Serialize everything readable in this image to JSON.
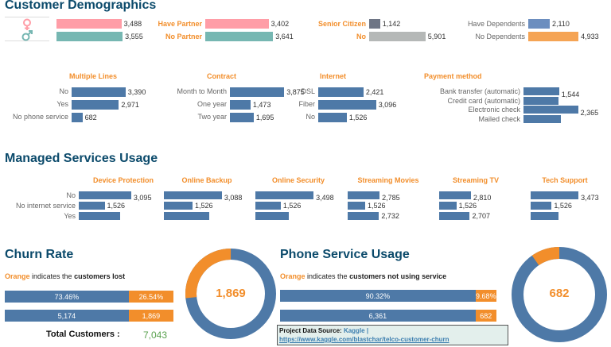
{
  "demographics": {
    "title": "Customer Demographics",
    "gender": {
      "icons": [
        "female-icon",
        "male-icon"
      ],
      "values": [
        3488,
        3555
      ],
      "labels": [
        "3,488",
        "3,555"
      ],
      "colors": [
        "#ff9da7",
        "#76b7b2"
      ]
    },
    "partner": {
      "categories": [
        "Have Partner",
        "No Partner"
      ],
      "values": [
        3402,
        3641
      ],
      "labels": [
        "3,402",
        "3,641"
      ],
      "colors": [
        "#ff9da7",
        "#76b7b2"
      ]
    },
    "senior": {
      "categories": [
        "Senior Citizen",
        "No"
      ],
      "values": [
        1142,
        5901
      ],
      "labels": [
        "1,142",
        "5,901"
      ],
      "colors": [
        "#6e7585",
        "#b5b8b7"
      ]
    },
    "dependents": {
      "categories": [
        "Have Dependents",
        "No Dependents"
      ],
      "values": [
        2110,
        4933
      ],
      "labels": [
        "2,110",
        "4,933"
      ],
      "colors": [
        "#6c8ebf",
        "#f5a454"
      ]
    }
  },
  "services": {
    "multiple_lines": {
      "title": "Multiple Lines",
      "categories": [
        "No",
        "Yes",
        "No phone service"
      ],
      "values": [
        3390,
        2971,
        682
      ],
      "labels": [
        "3,390",
        "2,971",
        "682"
      ]
    },
    "contract": {
      "title": "Contract",
      "categories": [
        "Month to Month",
        "One year",
        "Two year"
      ],
      "values": [
        3875,
        1473,
        1695
      ],
      "labels": [
        "3,875",
        "1,473",
        "1,695"
      ]
    },
    "internet": {
      "title": "Internet",
      "categories": [
        "DSL",
        "Fiber",
        "No"
      ],
      "values": [
        2421,
        3096,
        1526
      ],
      "labels": [
        "2,421",
        "3,096",
        "1,526"
      ]
    },
    "payment": {
      "title": "Payment method",
      "categories": [
        "Bank transfer (automatic)",
        "Credit card (automatic)",
        "Electronic check",
        "Mailed check"
      ],
      "values": [
        1544,
        1522,
        2365,
        1612
      ],
      "labels": [
        "1,544",
        "",
        "2,365",
        ""
      ]
    }
  },
  "managed": {
    "title": "Managed Services Usage",
    "categories": [
      "No",
      "No internet service",
      "Yes"
    ],
    "groups": [
      {
        "title": "Device Protection",
        "values": [
          3095,
          1526,
          2422
        ],
        "labels": [
          "3,095",
          "1,526",
          ""
        ]
      },
      {
        "title": "Online Backup",
        "values": [
          3088,
          1526,
          2429
        ],
        "labels": [
          "3,088",
          "1,526",
          ""
        ]
      },
      {
        "title": "Online Security",
        "values": [
          3498,
          1526,
          2019
        ],
        "labels": [
          "3,498",
          "1,526",
          ""
        ]
      },
      {
        "title": "Streaming Movies",
        "values": [
          2785,
          1526,
          2732
        ],
        "labels": [
          "2,785",
          "1,526",
          "2,732"
        ]
      },
      {
        "title": "Streaming TV",
        "values": [
          2810,
          1526,
          2707
        ],
        "labels": [
          "2,810",
          "1,526",
          "2,707"
        ]
      },
      {
        "title": "Tech Support",
        "values": [
          3473,
          1526,
          2044
        ],
        "labels": [
          "3,473",
          "1,526",
          ""
        ]
      }
    ]
  },
  "churn": {
    "title": "Churn Rate",
    "caption_orange": "Orange",
    "caption_mid": " indicates the ",
    "caption_bold": "customers lost",
    "pct": [
      "73.46%",
      "26.54%"
    ],
    "counts": [
      "5,174",
      "1,869"
    ],
    "fraction_lost": 0.2654,
    "donut_value": "1,869",
    "total_label": "Total Customers :",
    "total_value": "7,043"
  },
  "phone": {
    "title": "Phone Service Usage",
    "caption_orange": "Orange",
    "caption_mid": " indicates the ",
    "caption_bold": "customers not using service",
    "pct": [
      "90.32%",
      "9.68%"
    ],
    "counts": [
      "6,361",
      "682"
    ],
    "fraction_not_using": 0.0968,
    "donut_value": "682"
  },
  "source": {
    "label": "Project Data Source:",
    "name": "Kaggle |",
    "url": "https://www.kaggle.com/blastchar/telco-customer-churn"
  },
  "colors": {
    "blue": "#4e79a7",
    "orange": "#f28e2b",
    "title": "#0b4a6b",
    "green": "#59a14f"
  }
}
